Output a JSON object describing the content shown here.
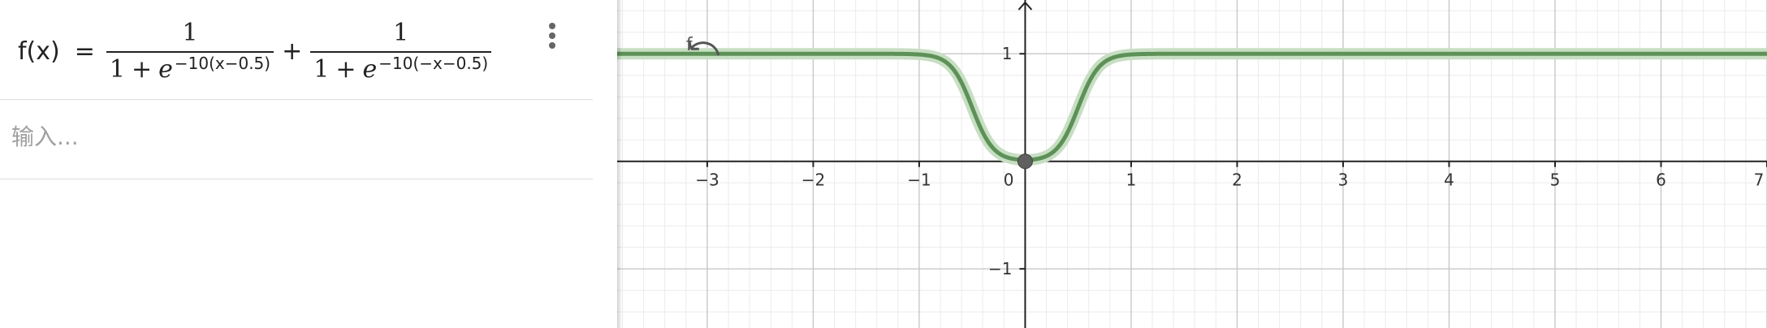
{
  "algebra_view": {
    "function_entry": {
      "name": "f(x)",
      "equals": "=",
      "plus": "+",
      "term1": {
        "numerator": "1",
        "denominator_one": "1",
        "denominator_plus": "+",
        "base": "e",
        "exponent": "−10(x−0.5)"
      },
      "term2": {
        "numerator": "1",
        "denominator_one": "1",
        "denominator_plus": "+",
        "base": "e",
        "exponent": "−10(−x−0.5)"
      },
      "menu_icon": "kebab-menu-icon"
    },
    "input_row": {
      "placeholder": "输入..."
    }
  },
  "graphics_view": {
    "function_label": "f",
    "curve_color": "#5d9157",
    "curve_halo_color": "#c7dec3",
    "point_color": "#606060",
    "x_tick_labels": [
      "−3",
      "−2",
      "−1",
      "0",
      "1",
      "2",
      "3",
      "4",
      "5",
      "6",
      "7"
    ],
    "y_tick_labels": [
      "1",
      "−1"
    ],
    "axis_ranges": {
      "x": [
        -3.85,
        7.0
      ],
      "y": [
        -1.55,
        1.5
      ]
    },
    "grid": true,
    "minor_grid": true,
    "function": {
      "expression": "1/(1+e^(-10(x-0.5))) + 1/(1+e^(-10(-x-0.5)))"
    },
    "point": {
      "x": 0,
      "y": 0
    }
  }
}
